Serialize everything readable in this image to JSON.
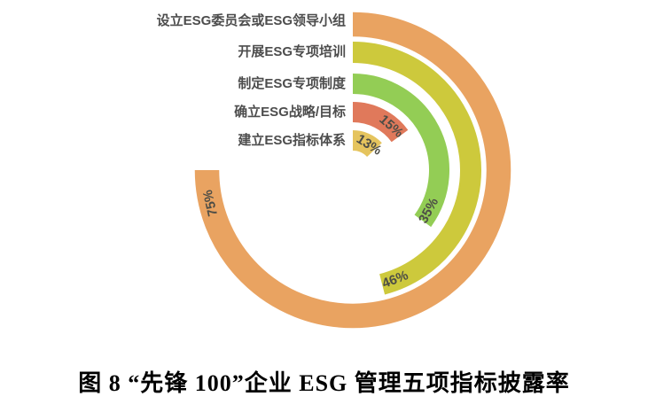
{
  "chart_data": {
    "type": "bar",
    "subtype": "radial-bar",
    "title": "图 8  “先锋 100”企业 ESG 管理五项指标披露率",
    "categories": [
      "设立ESG委员会或ESG领导小组",
      "开展ESG专项培训",
      "制定ESG专项制度",
      "确立ESG战略/目标",
      "建立ESG指标体系"
    ],
    "values": [
      75,
      46,
      35,
      15,
      13
    ],
    "value_labels": [
      "75%",
      "46%",
      "35%",
      "15%",
      "13%"
    ],
    "unit": "%",
    "value_range": [
      0,
      100
    ],
    "start_angle_deg": 0,
    "direction": "clockwise",
    "legend": "none",
    "grid": "off",
    "colors": [
      "#E9A361",
      "#CDC93C",
      "#93CD55",
      "#E0795B",
      "#E5C45E"
    ],
    "label_color": "#4d4d4d",
    "background_color": "#ffffff"
  }
}
